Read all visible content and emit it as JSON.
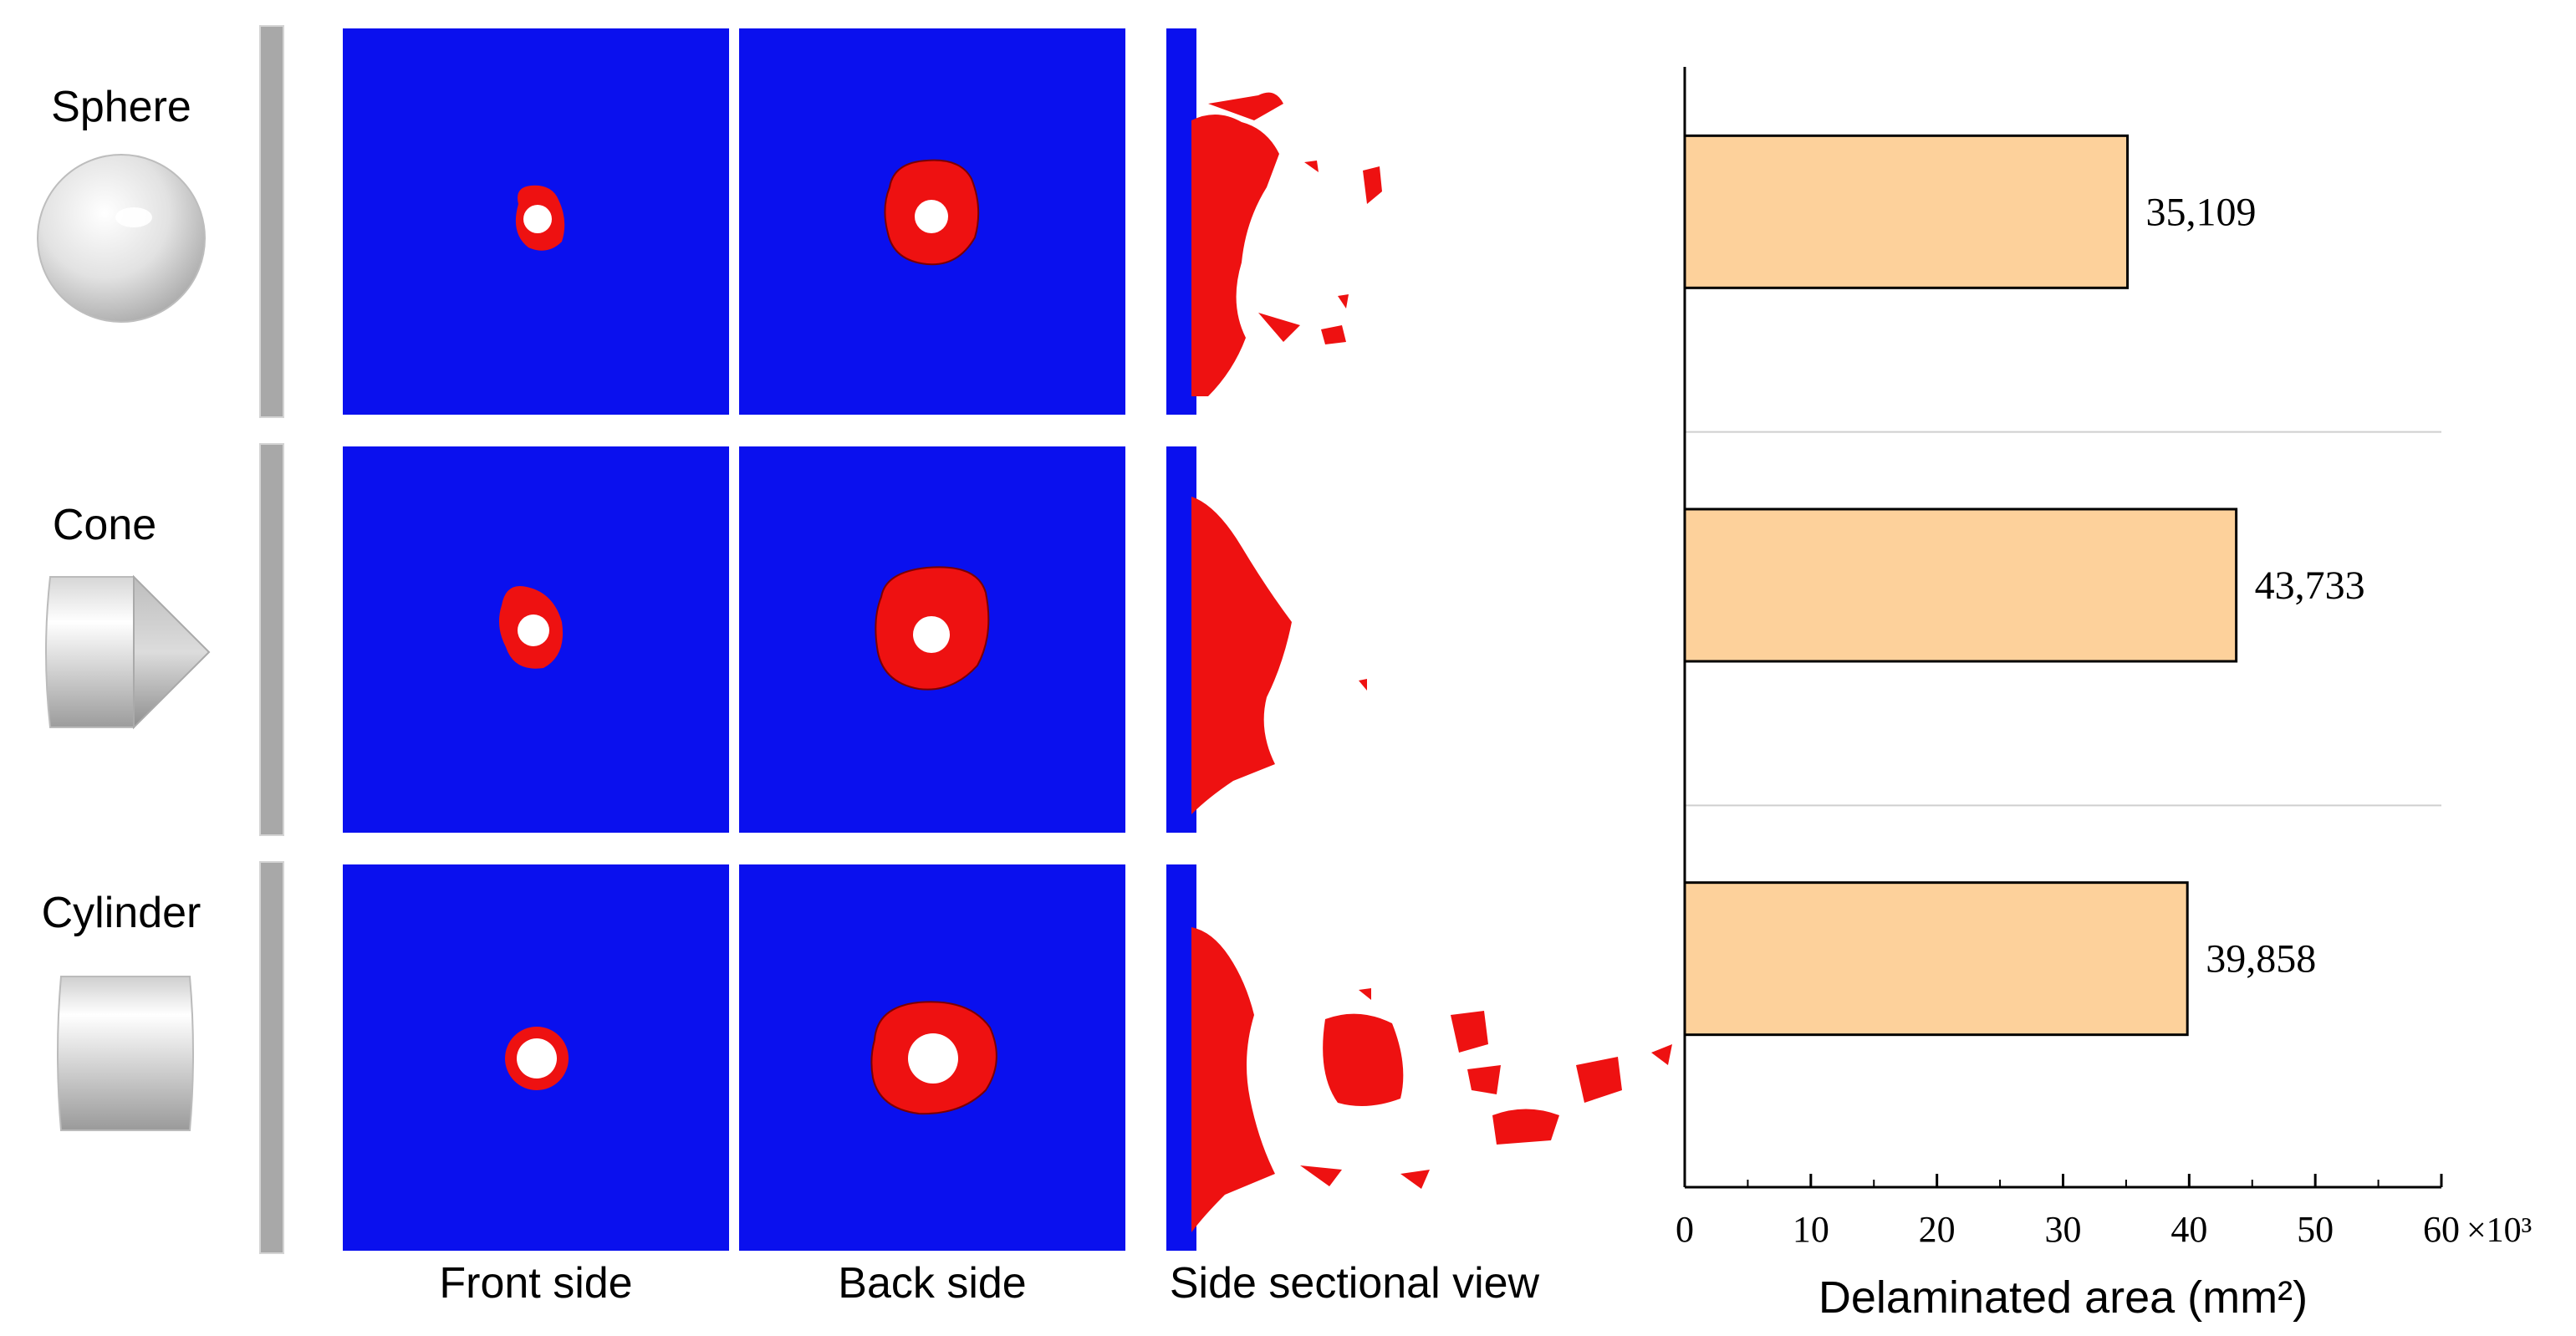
{
  "rows": [
    {
      "label": "Sphere",
      "shape": "sphere-icon"
    },
    {
      "label": "Cone",
      "shape": "cone-icon"
    },
    {
      "label": "Cylinder",
      "shape": "cylinder-icon"
    }
  ],
  "columns": {
    "front": "Front side",
    "back": "Back side",
    "side": "Side sectional view"
  },
  "colors": {
    "panel_blue": "#0a10ee",
    "damage_red": "#ee1111",
    "bar_fill": "#fdd19b",
    "plate_gray": "#a8a8a8"
  },
  "chart_data": {
    "type": "bar",
    "orientation": "horizontal",
    "categories": [
      "Sphere",
      "Cone",
      "Cylinder"
    ],
    "values": [
      35109,
      43733,
      39858
    ],
    "value_labels": [
      "35,109",
      "43,733",
      "39,858"
    ],
    "xlabel": "Delaminated area (mm²)",
    "xlim": [
      0,
      60000
    ],
    "xticks": [
      "0",
      "10",
      "20",
      "30",
      "40",
      "50",
      "60"
    ],
    "tick_step": 10000,
    "multiplier_label": "×10³",
    "grid": false
  }
}
